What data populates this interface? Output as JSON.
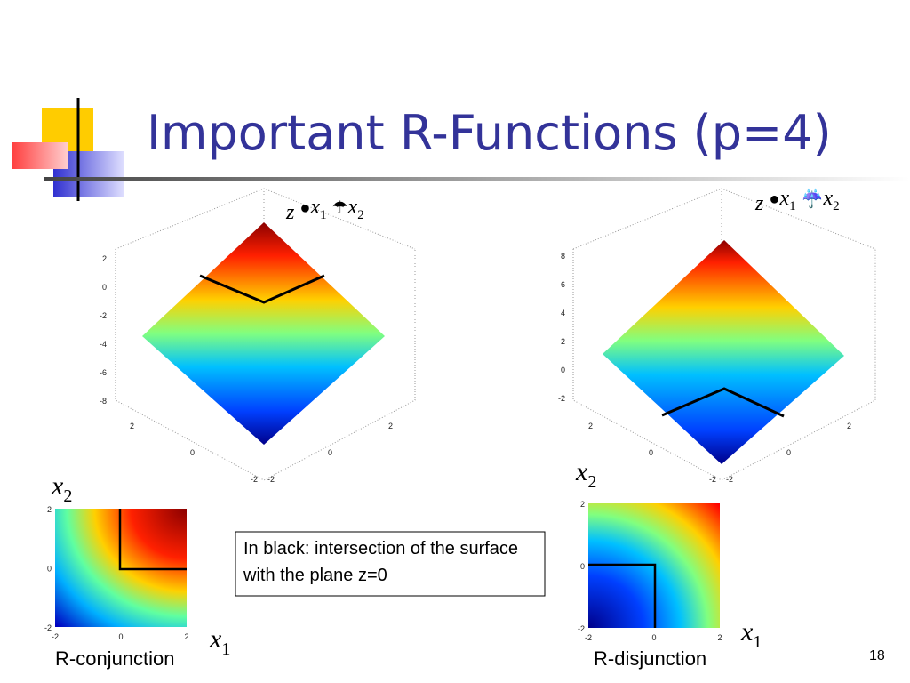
{
  "title": "Important R-Functions (p=4)",
  "left": {
    "formula": {
      "z": "z",
      "op1": "●",
      "x1": "x",
      "x1_sub": "1",
      "op2": "☂",
      "x2": "x",
      "x2_sub": "2"
    },
    "plot3d": {
      "zticks": [
        "2",
        "0",
        "-2",
        "-4",
        "-6",
        "-8"
      ],
      "x_ticks_left": [
        "2",
        "0",
        "-2"
      ],
      "x_ticks_right": [
        "-2",
        "0",
        "2"
      ]
    },
    "plot2d": {
      "ylabel": "x",
      "ylabel_sub": "2",
      "xlabel": "x",
      "xlabel_sub": "1",
      "yticks": [
        "2",
        "0",
        "-2"
      ],
      "xticks": [
        "-2",
        "0",
        "2"
      ]
    },
    "caption": "R-conjunction"
  },
  "right": {
    "formula": {
      "z": "z",
      "op1": "●",
      "x1": "x",
      "x1_sub": "1",
      "op2": "☔",
      "x2": "x",
      "x2_sub": "2"
    },
    "plot3d": {
      "zticks": [
        "8",
        "6",
        "4",
        "2",
        "0",
        "-2"
      ],
      "x_ticks_left": [
        "2",
        "0",
        "-2"
      ],
      "x_ticks_right": [
        "-2",
        "0",
        "2"
      ]
    },
    "plot2d": {
      "ylabel": "x",
      "ylabel_sub": "2",
      "xlabel": "x",
      "xlabel_sub": "1",
      "yticks": [
        "2",
        "0",
        "-2"
      ],
      "xticks": [
        "-2",
        "0",
        "2"
      ]
    },
    "caption": "R-disjunction"
  },
  "note": "In black: intersection of the surface with the plane z=0",
  "page_number": "18"
}
